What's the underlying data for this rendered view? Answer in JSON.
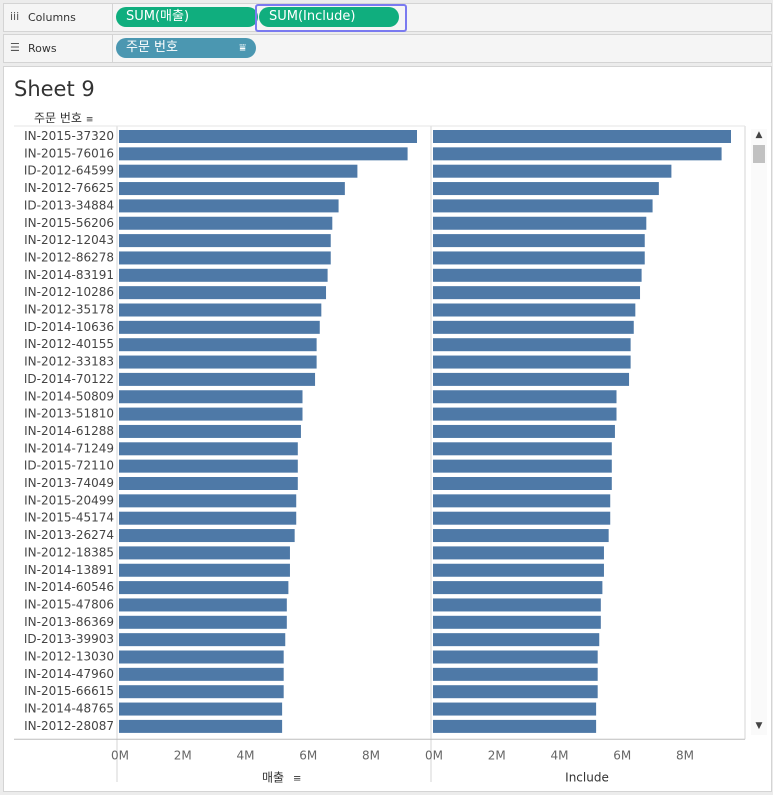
{
  "shelves": {
    "columns": {
      "label": "Columns",
      "pills": [
        "SUM(매출)",
        "SUM(Include)"
      ]
    },
    "rows": {
      "label": "Rows",
      "pill": "주문 번호"
    }
  },
  "sheet": {
    "title": "Sheet 9",
    "row_header": "주문 번호"
  },
  "chart_data": {
    "type": "bar",
    "orientation": "horizontal",
    "categories": [
      "IN-2015-37320",
      "IN-2015-76016",
      "ID-2012-64599",
      "IN-2012-76625",
      "ID-2013-34884",
      "IN-2015-56206",
      "IN-2012-12043",
      "IN-2012-86278",
      "IN-2014-83191",
      "IN-2012-10286",
      "IN-2012-35178",
      "ID-2014-10636",
      "IN-2012-40155",
      "IN-2012-33183",
      "ID-2014-70122",
      "IN-2014-50809",
      "IN-2013-51810",
      "IN-2014-61288",
      "IN-2014-71249",
      "ID-2015-72110",
      "IN-2013-74049",
      "IN-2015-20499",
      "IN-2015-45174",
      "IN-2013-26274",
      "IN-2012-18385",
      "IN-2014-13891",
      "IN-2014-60546",
      "IN-2015-47806",
      "IN-2013-86369",
      "ID-2013-39903",
      "IN-2012-13030",
      "IN-2014-47960",
      "IN-2015-66615",
      "IN-2014-48765",
      "IN-2012-28087"
    ],
    "series": [
      {
        "name": "매출",
        "values": [
          9.5,
          9.2,
          7.6,
          7.2,
          7.0,
          6.8,
          6.75,
          6.75,
          6.65,
          6.6,
          6.45,
          6.4,
          6.3,
          6.3,
          6.25,
          5.85,
          5.85,
          5.8,
          5.7,
          5.7,
          5.7,
          5.65,
          5.65,
          5.6,
          5.45,
          5.45,
          5.4,
          5.35,
          5.35,
          5.3,
          5.25,
          5.25,
          5.25,
          5.2,
          5.2
        ]
      },
      {
        "name": "Include",
        "values": [
          9.5,
          9.2,
          7.6,
          7.2,
          7.0,
          6.8,
          6.75,
          6.75,
          6.65,
          6.6,
          6.45,
          6.4,
          6.3,
          6.3,
          6.25,
          5.85,
          5.85,
          5.8,
          5.7,
          5.7,
          5.7,
          5.65,
          5.65,
          5.6,
          5.45,
          5.45,
          5.4,
          5.35,
          5.35,
          5.3,
          5.25,
          5.25,
          5.25,
          5.2,
          5.2
        ]
      }
    ],
    "value_unit": "M",
    "xlim": [
      0,
      9.5
    ],
    "xticks": [
      "0M",
      "2M",
      "4M",
      "6M",
      "8M"
    ],
    "xlabels": [
      "매출",
      "Include"
    ],
    "bar_color": "#4e79a7"
  }
}
